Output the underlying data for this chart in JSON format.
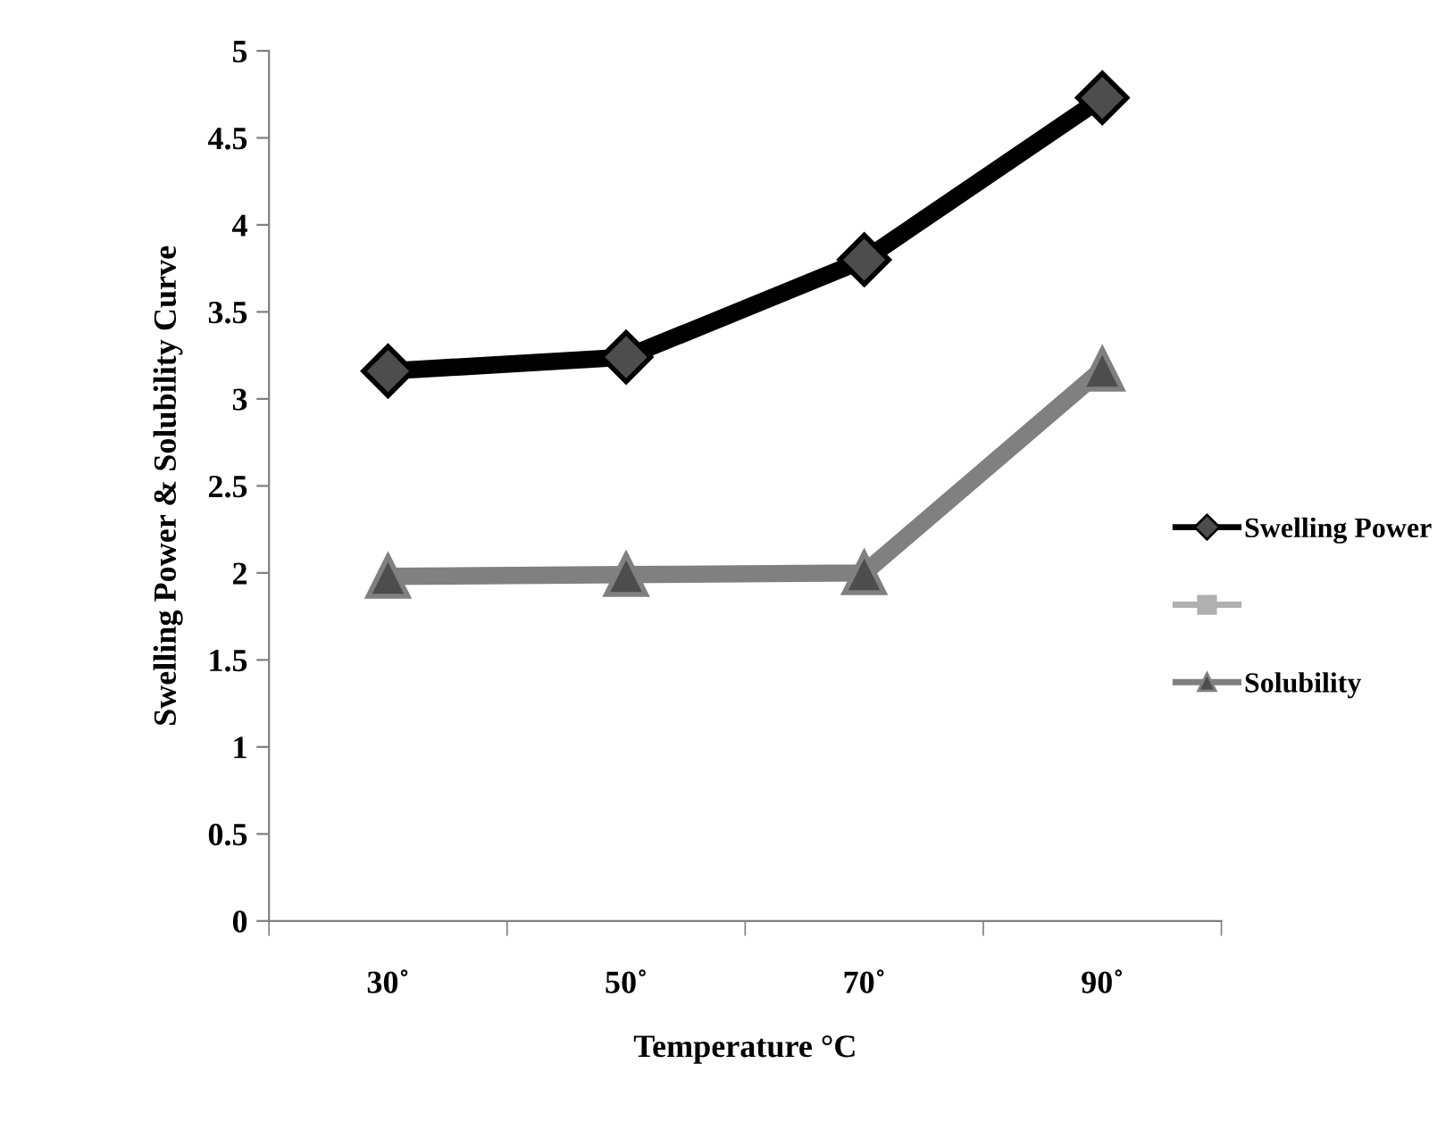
{
  "chart_data": {
    "type": "line",
    "xlabel": "Temperature °C",
    "ylabel": "Swelling Power & Solubility Curve",
    "categories": [
      "30˚",
      "50˚",
      "70˚",
      "90˚"
    ],
    "series": [
      {
        "name": "Swelling Power",
        "color": "#000000",
        "marker": "diamond",
        "values": [
          3.16,
          3.24,
          3.8,
          4.73
        ]
      },
      {
        "color": "#b0b0b0",
        "marker": "square",
        "values": [
          null,
          null,
          null,
          null
        ]
      },
      {
        "name": "Solubility",
        "color": "#808080",
        "marker": "triangle",
        "values": [
          1.98,
          1.99,
          2.0,
          3.17
        ]
      }
    ],
    "ylim": [
      0,
      5
    ],
    "yticks": [
      0,
      0.5,
      1,
      1.5,
      2,
      2.5,
      3,
      3.5,
      4,
      4.5,
      5
    ],
    "grid": false,
    "legend": "right"
  }
}
